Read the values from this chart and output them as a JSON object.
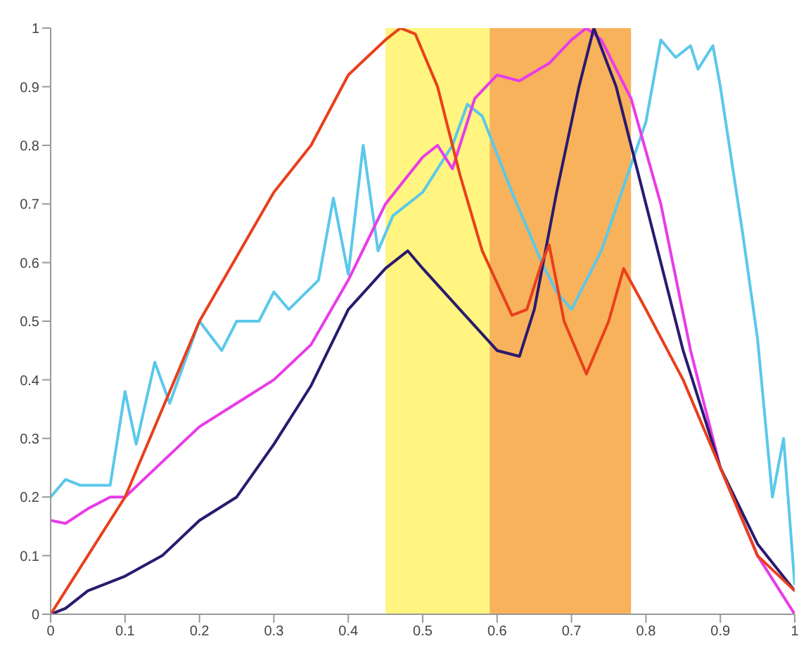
{
  "chart_data": {
    "type": "line",
    "xlim": [
      0,
      1
    ],
    "ylim": [
      0,
      1
    ],
    "xticks": [
      0,
      0.1,
      0.2,
      0.3,
      0.4,
      0.5,
      0.6,
      0.7,
      0.8,
      0.9,
      1
    ],
    "yticks": [
      0,
      0.1,
      0.2,
      0.3,
      0.4,
      0.5,
      0.6,
      0.7,
      0.8,
      0.9,
      1
    ],
    "grid": false,
    "marker": "none",
    "line_style": "solid",
    "bands": [
      {
        "axis": "x",
        "from": 0.45,
        "to": 0.59,
        "color": "#fff36a"
      },
      {
        "axis": "x",
        "from": 0.59,
        "to": 0.78,
        "color": "#f7a540"
      }
    ],
    "series": [
      {
        "color": "#5bc8ea",
        "x": [
          0,
          0.02,
          0.04,
          0.08,
          0.1,
          0.115,
          0.14,
          0.16,
          0.2,
          0.23,
          0.25,
          0.28,
          0.3,
          0.32,
          0.36,
          0.38,
          0.4,
          0.42,
          0.44,
          0.46,
          0.5,
          0.54,
          0.56,
          0.58,
          0.62,
          0.66,
          0.68,
          0.7,
          0.74,
          0.8,
          0.82,
          0.84,
          0.86,
          0.87,
          0.89,
          0.9,
          0.93,
          0.95,
          0.97,
          0.985,
          1
        ],
        "values": [
          0.2,
          0.23,
          0.22,
          0.22,
          0.38,
          0.29,
          0.43,
          0.36,
          0.5,
          0.45,
          0.5,
          0.5,
          0.55,
          0.52,
          0.57,
          0.71,
          0.58,
          0.8,
          0.62,
          0.68,
          0.72,
          0.8,
          0.87,
          0.85,
          0.72,
          0.6,
          0.55,
          0.52,
          0.62,
          0.84,
          0.98,
          0.95,
          0.97,
          0.93,
          0.97,
          0.9,
          0.65,
          0.47,
          0.2,
          0.3,
          0.05
        ]
      },
      {
        "color": "#e83ce8",
        "x": [
          0,
          0.02,
          0.05,
          0.08,
          0.1,
          0.15,
          0.2,
          0.25,
          0.3,
          0.35,
          0.4,
          0.45,
          0.5,
          0.52,
          0.54,
          0.57,
          0.6,
          0.63,
          0.67,
          0.7,
          0.72,
          0.74,
          0.78,
          0.82,
          0.86,
          0.9,
          0.95,
          1
        ],
        "values": [
          0.16,
          0.155,
          0.18,
          0.2,
          0.2,
          0.26,
          0.32,
          0.36,
          0.4,
          0.46,
          0.57,
          0.7,
          0.78,
          0.8,
          0.76,
          0.88,
          0.92,
          0.91,
          0.94,
          0.98,
          1,
          0.98,
          0.88,
          0.7,
          0.45,
          0.25,
          0.1,
          0
        ]
      },
      {
        "color": "#2a1a6e",
        "x": [
          0,
          0.02,
          0.05,
          0.1,
          0.15,
          0.2,
          0.25,
          0.3,
          0.35,
          0.4,
          0.45,
          0.48,
          0.5,
          0.55,
          0.6,
          0.63,
          0.65,
          0.68,
          0.71,
          0.73,
          0.76,
          0.8,
          0.85,
          0.9,
          0.95,
          1
        ],
        "values": [
          0,
          0.01,
          0.04,
          0.065,
          0.1,
          0.16,
          0.2,
          0.29,
          0.39,
          0.52,
          0.59,
          0.62,
          0.59,
          0.52,
          0.45,
          0.44,
          0.52,
          0.72,
          0.9,
          1,
          0.9,
          0.7,
          0.45,
          0.25,
          0.12,
          0.04
        ]
      },
      {
        "color": "#e8401c",
        "x": [
          0,
          0.1,
          0.2,
          0.3,
          0.35,
          0.4,
          0.45,
          0.47,
          0.49,
          0.52,
          0.55,
          0.58,
          0.62,
          0.64,
          0.66,
          0.67,
          0.69,
          0.72,
          0.75,
          0.77,
          0.8,
          0.85,
          0.9,
          0.95,
          1
        ],
        "values": [
          0,
          0.2,
          0.5,
          0.72,
          0.8,
          0.92,
          0.98,
          1,
          0.99,
          0.9,
          0.75,
          0.62,
          0.51,
          0.52,
          0.6,
          0.63,
          0.5,
          0.41,
          0.5,
          0.59,
          0.52,
          0.4,
          0.25,
          0.1,
          0.04
        ]
      }
    ]
  }
}
